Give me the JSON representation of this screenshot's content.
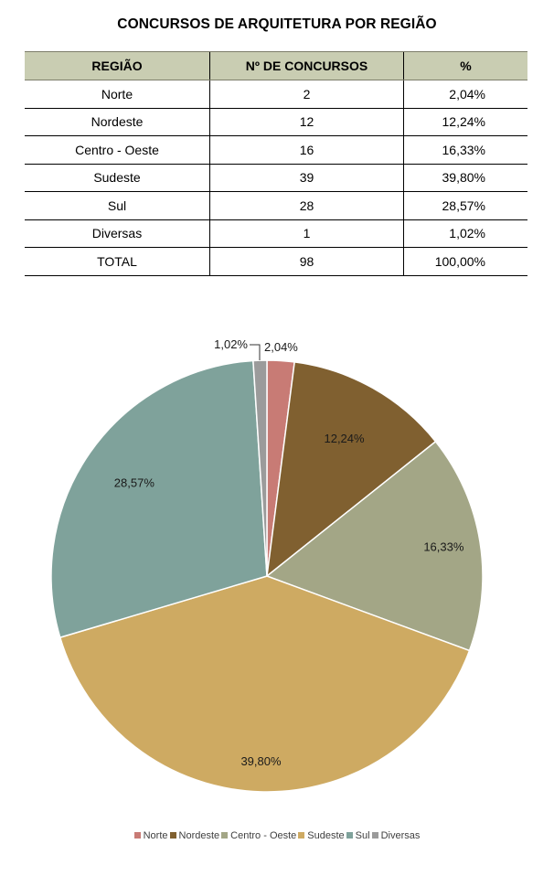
{
  "title": "CONCURSOS DE ARQUITETURA POR REGIÃO",
  "table": {
    "headers": [
      "REGIÃO",
      "Nº DE CONCURSOS",
      "%"
    ],
    "rows": [
      {
        "region": "Norte",
        "count": "2",
        "pct": "2,04%"
      },
      {
        "region": "Nordeste",
        "count": "12",
        "pct": "12,24%"
      },
      {
        "region": "Centro - Oeste",
        "count": "16",
        "pct": "16,33%"
      },
      {
        "region": "Sudeste",
        "count": "39",
        "pct": "39,80%"
      },
      {
        "region": "Sul",
        "count": "28",
        "pct": "28,57%"
      },
      {
        "region": "Diversas",
        "count": "1",
        "pct": "1,02%"
      },
      {
        "region": "TOTAL",
        "count": "98",
        "pct": "100,00%"
      }
    ]
  },
  "chart_data": {
    "type": "pie",
    "categories": [
      "Norte",
      "Nordeste",
      "Centro - Oeste",
      "Sudeste",
      "Sul",
      "Diversas"
    ],
    "values": [
      2,
      12,
      16,
      39,
      28,
      1
    ],
    "labels": [
      "2,04%",
      "12,24%",
      "16,33%",
      "39,80%",
      "28,57%",
      "1,02%"
    ],
    "colors": [
      "#c87b75",
      "#806030",
      "#a3a686",
      "#ceaa62",
      "#7fa29b",
      "#9b9b9b"
    ],
    "legend": "bottom"
  }
}
